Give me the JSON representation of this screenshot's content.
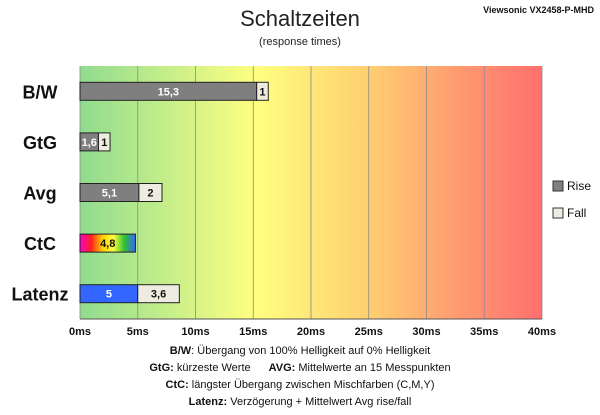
{
  "model": "Viewsonic VX2458-P-MHD",
  "chart_data": {
    "type": "bar",
    "title": "Schaltzeiten",
    "subtitle": "(response times)",
    "orientation": "horizontal",
    "stacked": true,
    "categories": [
      "B/W",
      "GtG",
      "Avg",
      "CtC",
      "Latenz"
    ],
    "series": [
      {
        "name": "Rise",
        "values": [
          15.3,
          1.6,
          5.1,
          4.8,
          5
        ],
        "labels": [
          "15,3",
          "1,6",
          "5,1",
          "4,8",
          "5"
        ],
        "color": "#7f7f7f"
      },
      {
        "name": "Fall",
        "values": [
          1,
          1,
          2,
          null,
          3.6
        ],
        "labels": [
          "1",
          "1",
          "2",
          "",
          "3,6"
        ],
        "color": "#eeece1"
      }
    ],
    "special_fills": {
      "CtC": "rainbow",
      "Latenz": "#3366ff"
    },
    "xlim": [
      0,
      40
    ],
    "xticks": [
      0,
      5,
      10,
      15,
      20,
      25,
      30,
      35,
      40
    ],
    "xtick_labels": [
      "0ms",
      "5ms",
      "10ms",
      "15ms",
      "20ms",
      "25ms",
      "30ms",
      "35ms",
      "40ms"
    ],
    "background": "green-yellow-red gradient",
    "grid": true,
    "legend": "right"
  },
  "notes": {
    "line1_key": "B/W",
    "line1_text": ":  Übergang von 100% Helligkeit auf 0% Helligkeit",
    "line2_key_a": "GtG:",
    "line2_text_a": " kürzeste  Werte",
    "line2_key_b": "AVG:",
    "line2_text_b": " Mittelwerte  an 15 Messpunkten",
    "line3_key": "CtC:",
    "line3_text": " längster Übergang  zwischen Mischfarben  (C,M,Y)",
    "line4_key": "Latenz:",
    "line4_text": " Verzögerung  + Mittelwert Avg rise/fall"
  }
}
